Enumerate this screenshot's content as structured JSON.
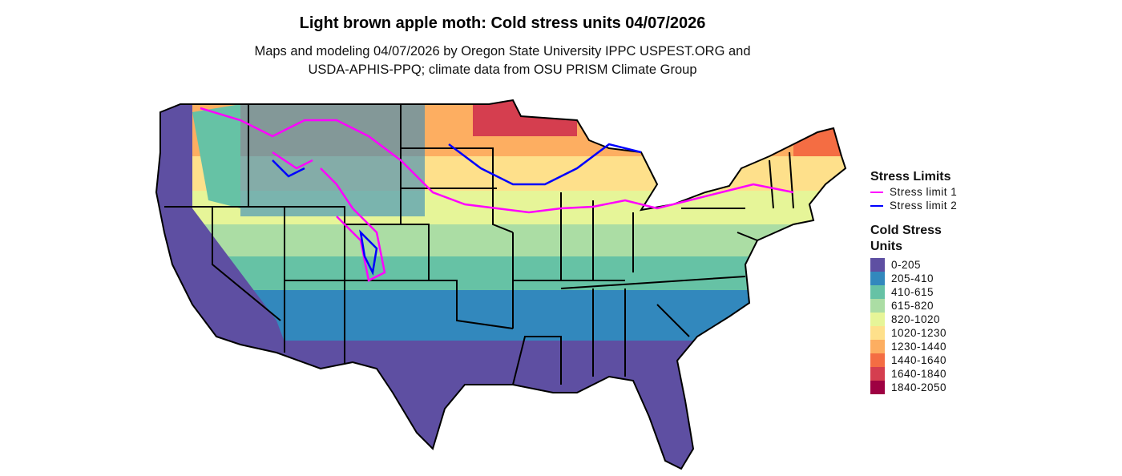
{
  "title": "Light brown apple moth: Cold stress units 04/07/2026",
  "subtitle_line1": "Maps and modeling 04/07/2026 by Oregon State University IPPC USPEST.ORG and",
  "subtitle_line2": "USDA-APHIS-PPQ; climate data from OSU PRISM Climate Group",
  "legend": {
    "stress_title": "Stress Limits",
    "stress_limits": [
      {
        "label": "Stress limit 1",
        "color": "#FF00FF"
      },
      {
        "label": "Stress limit 2",
        "color": "#0000FF"
      }
    ],
    "units_title_line1": "Cold Stress",
    "units_title_line2": "Units",
    "classes": [
      {
        "label": "0-205",
        "color": "#5E4FA2"
      },
      {
        "label": "205-410",
        "color": "#3288BD"
      },
      {
        "label": "410-615",
        "color": "#66C2A5"
      },
      {
        "label": "615-820",
        "color": "#ABDDA4"
      },
      {
        "label": "820-1020",
        "color": "#E6F598"
      },
      {
        "label": "1020-1230",
        "color": "#FEE08B"
      },
      {
        "label": "1230-1440",
        "color": "#FDAE61"
      },
      {
        "label": "1440-1640",
        "color": "#F46D43"
      },
      {
        "label": "1640-1840",
        "color": "#D53E4F"
      },
      {
        "label": "1840-2050",
        "color": "#9E0142"
      }
    ]
  }
}
